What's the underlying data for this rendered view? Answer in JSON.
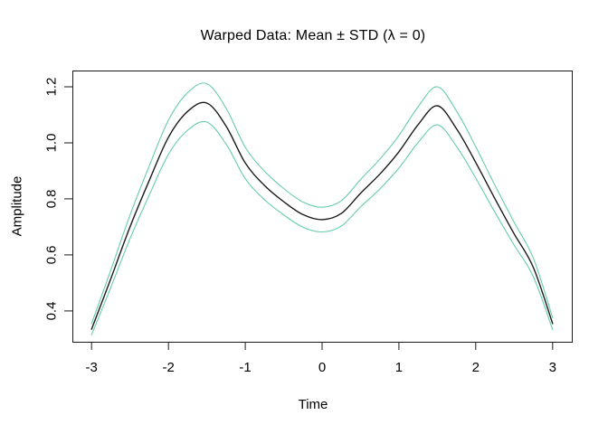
{
  "title": "Warped Data: Mean ± STD (λ = 0)",
  "chart_data": {
    "type": "line",
    "title": "Warped Data: Mean ± STD (λ = 0)",
    "xlabel": "Time",
    "ylabel": "Amplitude",
    "grid": false,
    "legend": "none",
    "xlim": [
      -3.25,
      3.25
    ],
    "ylim": [
      0.29,
      1.258
    ],
    "x_tick_values": [
      -3,
      -2,
      -1,
      0,
      1,
      2,
      3
    ],
    "x_tick_labels": [
      "-3",
      "-2",
      "-1",
      "0",
      "1",
      "2",
      "3"
    ],
    "y_tick_values": [
      0.4,
      0.6,
      0.8,
      1.0,
      1.2
    ],
    "y_tick_labels": [
      "0.4",
      "0.6",
      "0.8",
      "1.0",
      "1.2"
    ],
    "x": [
      -3,
      -2.75,
      -2.5,
      -2.25,
      -2,
      -1.75,
      -1.5,
      -1.25,
      -1,
      -0.75,
      -0.5,
      -0.25,
      0,
      0.25,
      0.5,
      0.75,
      1,
      1.25,
      1.5,
      1.75,
      2,
      2.25,
      2.5,
      2.75,
      3
    ],
    "series": [
      {
        "name": "mean",
        "color": "#1a1a1a",
        "values": [
          0.335,
          0.515,
          0.7,
          0.865,
          1.02,
          1.112,
          1.142,
          1.06,
          0.928,
          0.848,
          0.79,
          0.744,
          0.726,
          0.748,
          0.82,
          0.888,
          0.968,
          1.065,
          1.132,
          1.05,
          0.93,
          0.8,
          0.675,
          0.555,
          0.355
        ]
      },
      {
        "name": "mean_plus_std",
        "color": "#66CDAA",
        "values": [
          0.355,
          0.546,
          0.742,
          0.917,
          1.081,
          1.179,
          1.211,
          1.124,
          0.984,
          0.899,
          0.837,
          0.789,
          0.77,
          0.793,
          0.869,
          0.941,
          1.026,
          1.129,
          1.2,
          1.113,
          0.986,
          0.848,
          0.716,
          0.588,
          0.376
        ]
      },
      {
        "name": "mean_minus_std",
        "color": "#66CDAA",
        "values": [
          0.315,
          0.484,
          0.658,
          0.813,
          0.959,
          1.045,
          1.074,
          0.996,
          0.872,
          0.797,
          0.743,
          0.699,
          0.682,
          0.703,
          0.771,
          0.835,
          0.91,
          1.001,
          1.064,
          0.987,
          0.874,
          0.752,
          0.635,
          0.522,
          0.334
        ]
      }
    ],
    "axis_color": "#1a1a1a"
  }
}
